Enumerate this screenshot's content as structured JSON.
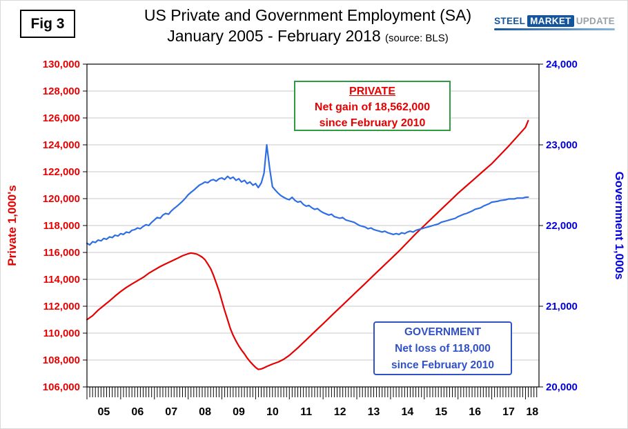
{
  "fig_label": "Fig 3",
  "title_line1": "US Private and Government Employment (SA)",
  "title_line2": "January 2005 - February 2018",
  "title_source": "(source: BLS)",
  "logo": {
    "steel": "STEEL",
    "market": "MARKET",
    "update": "UPDATE"
  },
  "annotations": {
    "private": {
      "title": "PRIVATE",
      "line1": "Net gain of 18,562,000",
      "line2": "since February 2010"
    },
    "government": {
      "title": "GOVERNMENT",
      "line1": "Net loss of 118,000",
      "line2": "since February 2010"
    }
  },
  "chart_data": {
    "type": "line",
    "grid": true,
    "x_range": [
      2005.0,
      2018.4
    ],
    "x_tick_labels": [
      "05",
      "06",
      "07",
      "08",
      "09",
      "10",
      "11",
      "12",
      "13",
      "14",
      "15",
      "16",
      "17",
      "18"
    ],
    "left_axis": {
      "label": "Private 1,000's",
      "color": "#e60000",
      "min": 106000,
      "max": 130000,
      "step": 2000,
      "tick_labels": [
        "130,000",
        "128,000",
        "126,000",
        "124,000",
        "122,000",
        "120,000",
        "118,000",
        "116,000",
        "114,000",
        "112,000",
        "110,000",
        "108,000",
        "106,000"
      ]
    },
    "right_axis": {
      "label": "Government 1,000s",
      "color": "#0000dd",
      "min": 20000,
      "max": 24000,
      "step": 1000,
      "tick_labels": [
        "24,000",
        "23,000",
        "22,000",
        "21,000",
        "20,000"
      ]
    },
    "series": [
      {
        "name": "Private",
        "axis": "left",
        "color": "#e60000",
        "points": [
          [
            2005.0,
            111000
          ],
          [
            2005.17,
            111300
          ],
          [
            2005.33,
            111700
          ],
          [
            2005.5,
            112050
          ],
          [
            2005.67,
            112400
          ],
          [
            2005.83,
            112750
          ],
          [
            2006.0,
            113100
          ],
          [
            2006.17,
            113400
          ],
          [
            2006.33,
            113650
          ],
          [
            2006.5,
            113900
          ],
          [
            2006.67,
            114150
          ],
          [
            2006.83,
            114450
          ],
          [
            2007.0,
            114700
          ],
          [
            2007.17,
            114950
          ],
          [
            2007.33,
            115150
          ],
          [
            2007.5,
            115350
          ],
          [
            2007.67,
            115550
          ],
          [
            2007.83,
            115750
          ],
          [
            2008.0,
            115900
          ],
          [
            2008.08,
            115960
          ],
          [
            2008.17,
            115920
          ],
          [
            2008.25,
            115880
          ],
          [
            2008.33,
            115780
          ],
          [
            2008.42,
            115640
          ],
          [
            2008.5,
            115450
          ],
          [
            2008.58,
            115150
          ],
          [
            2008.67,
            114780
          ],
          [
            2008.75,
            114300
          ],
          [
            2008.83,
            113750
          ],
          [
            2008.92,
            113100
          ],
          [
            2009.0,
            112400
          ],
          [
            2009.08,
            111700
          ],
          [
            2009.17,
            111000
          ],
          [
            2009.25,
            110350
          ],
          [
            2009.33,
            109850
          ],
          [
            2009.42,
            109400
          ],
          [
            2009.5,
            109050
          ],
          [
            2009.58,
            108750
          ],
          [
            2009.67,
            108450
          ],
          [
            2009.75,
            108150
          ],
          [
            2009.83,
            107900
          ],
          [
            2009.92,
            107650
          ],
          [
            2010.0,
            107450
          ],
          [
            2010.08,
            107300
          ],
          [
            2010.17,
            107340
          ],
          [
            2010.25,
            107420
          ],
          [
            2010.33,
            107520
          ],
          [
            2010.5,
            107700
          ],
          [
            2010.67,
            107850
          ],
          [
            2010.83,
            108050
          ],
          [
            2011.0,
            108350
          ],
          [
            2011.25,
            108900
          ],
          [
            2011.5,
            109500
          ],
          [
            2011.75,
            110100
          ],
          [
            2012.0,
            110700
          ],
          [
            2012.25,
            111300
          ],
          [
            2012.5,
            111900
          ],
          [
            2012.75,
            112500
          ],
          [
            2013.0,
            113100
          ],
          [
            2013.25,
            113700
          ],
          [
            2013.5,
            114300
          ],
          [
            2013.75,
            114900
          ],
          [
            2014.0,
            115500
          ],
          [
            2014.25,
            116100
          ],
          [
            2014.5,
            116750
          ],
          [
            2014.75,
            117400
          ],
          [
            2015.0,
            118000
          ],
          [
            2015.25,
            118600
          ],
          [
            2015.5,
            119200
          ],
          [
            2015.75,
            119800
          ],
          [
            2016.0,
            120400
          ],
          [
            2016.25,
            120950
          ],
          [
            2016.5,
            121500
          ],
          [
            2016.75,
            122050
          ],
          [
            2017.0,
            122600
          ],
          [
            2017.25,
            123250
          ],
          [
            2017.5,
            123900
          ],
          [
            2017.75,
            124600
          ],
          [
            2018.0,
            125300
          ],
          [
            2018.08,
            125800
          ]
        ]
      },
      {
        "name": "Government",
        "axis": "right",
        "color": "#2e6de4",
        "points": [
          [
            2005.0,
            21780
          ],
          [
            2005.08,
            21760
          ],
          [
            2005.17,
            21800
          ],
          [
            2005.25,
            21790
          ],
          [
            2005.33,
            21820
          ],
          [
            2005.42,
            21810
          ],
          [
            2005.5,
            21840
          ],
          [
            2005.58,
            21830
          ],
          [
            2005.67,
            21860
          ],
          [
            2005.75,
            21850
          ],
          [
            2005.83,
            21880
          ],
          [
            2005.92,
            21870
          ],
          [
            2006.0,
            21900
          ],
          [
            2006.08,
            21890
          ],
          [
            2006.17,
            21920
          ],
          [
            2006.25,
            21910
          ],
          [
            2006.33,
            21940
          ],
          [
            2006.42,
            21950
          ],
          [
            2006.5,
            21970
          ],
          [
            2006.58,
            21960
          ],
          [
            2006.67,
            21990
          ],
          [
            2006.75,
            22010
          ],
          [
            2006.83,
            22000
          ],
          [
            2006.92,
            22040
          ],
          [
            2007.0,
            22070
          ],
          [
            2007.08,
            22100
          ],
          [
            2007.17,
            22090
          ],
          [
            2007.25,
            22130
          ],
          [
            2007.33,
            22150
          ],
          [
            2007.42,
            22140
          ],
          [
            2007.5,
            22180
          ],
          [
            2007.58,
            22210
          ],
          [
            2007.67,
            22240
          ],
          [
            2007.75,
            22270
          ],
          [
            2007.83,
            22300
          ],
          [
            2007.92,
            22340
          ],
          [
            2008.0,
            22380
          ],
          [
            2008.08,
            22410
          ],
          [
            2008.17,
            22440
          ],
          [
            2008.25,
            22470
          ],
          [
            2008.33,
            22500
          ],
          [
            2008.42,
            22520
          ],
          [
            2008.5,
            22540
          ],
          [
            2008.58,
            22530
          ],
          [
            2008.67,
            22560
          ],
          [
            2008.75,
            22570
          ],
          [
            2008.83,
            22550
          ],
          [
            2008.92,
            22580
          ],
          [
            2009.0,
            22590
          ],
          [
            2009.08,
            22570
          ],
          [
            2009.17,
            22610
          ],
          [
            2009.25,
            22580
          ],
          [
            2009.33,
            22600
          ],
          [
            2009.42,
            22560
          ],
          [
            2009.5,
            22580
          ],
          [
            2009.58,
            22540
          ],
          [
            2009.67,
            22560
          ],
          [
            2009.75,
            22520
          ],
          [
            2009.83,
            22540
          ],
          [
            2009.92,
            22500
          ],
          [
            2010.0,
            22520
          ],
          [
            2010.08,
            22470
          ],
          [
            2010.17,
            22530
          ],
          [
            2010.25,
            22650
          ],
          [
            2010.33,
            23000
          ],
          [
            2010.42,
            22700
          ],
          [
            2010.5,
            22480
          ],
          [
            2010.58,
            22440
          ],
          [
            2010.67,
            22400
          ],
          [
            2010.75,
            22370
          ],
          [
            2010.83,
            22350
          ],
          [
            2010.92,
            22330
          ],
          [
            2011.0,
            22320
          ],
          [
            2011.08,
            22350
          ],
          [
            2011.17,
            22310
          ],
          [
            2011.25,
            22290
          ],
          [
            2011.33,
            22300
          ],
          [
            2011.42,
            22260
          ],
          [
            2011.5,
            22240
          ],
          [
            2011.58,
            22250
          ],
          [
            2011.67,
            22220
          ],
          [
            2011.75,
            22200
          ],
          [
            2011.83,
            22210
          ],
          [
            2011.92,
            22180
          ],
          [
            2012.0,
            22160
          ],
          [
            2012.17,
            22130
          ],
          [
            2012.25,
            22140
          ],
          [
            2012.33,
            22110
          ],
          [
            2012.5,
            22090
          ],
          [
            2012.58,
            22100
          ],
          [
            2012.67,
            22070
          ],
          [
            2012.75,
            22060
          ],
          [
            2012.92,
            22040
          ],
          [
            2013.0,
            22020
          ],
          [
            2013.08,
            22000
          ],
          [
            2013.17,
            21990
          ],
          [
            2013.25,
            21980
          ],
          [
            2013.33,
            21960
          ],
          [
            2013.42,
            21970
          ],
          [
            2013.5,
            21950
          ],
          [
            2013.58,
            21940
          ],
          [
            2013.67,
            21930
          ],
          [
            2013.75,
            21920
          ],
          [
            2013.83,
            21930
          ],
          [
            2013.92,
            21910
          ],
          [
            2014.0,
            21900
          ],
          [
            2014.08,
            21890
          ],
          [
            2014.17,
            21900
          ],
          [
            2014.25,
            21890
          ],
          [
            2014.33,
            21910
          ],
          [
            2014.42,
            21900
          ],
          [
            2014.5,
            21920
          ],
          [
            2014.58,
            21930
          ],
          [
            2014.67,
            21920
          ],
          [
            2014.75,
            21940
          ],
          [
            2014.83,
            21950
          ],
          [
            2014.92,
            21960
          ],
          [
            2015.0,
            21970
          ],
          [
            2015.17,
            21990
          ],
          [
            2015.25,
            22000
          ],
          [
            2015.42,
            22020
          ],
          [
            2015.5,
            22040
          ],
          [
            2015.67,
            22060
          ],
          [
            2015.75,
            22070
          ],
          [
            2015.92,
            22090
          ],
          [
            2016.0,
            22110
          ],
          [
            2016.17,
            22140
          ],
          [
            2016.25,
            22150
          ],
          [
            2016.42,
            22180
          ],
          [
            2016.5,
            22200
          ],
          [
            2016.67,
            22220
          ],
          [
            2016.75,
            22240
          ],
          [
            2016.92,
            22270
          ],
          [
            2017.0,
            22290
          ],
          [
            2017.17,
            22300
          ],
          [
            2017.25,
            22310
          ],
          [
            2017.42,
            22320
          ],
          [
            2017.5,
            22330
          ],
          [
            2017.67,
            22330
          ],
          [
            2017.75,
            22340
          ],
          [
            2017.92,
            22340
          ],
          [
            2018.0,
            22350
          ],
          [
            2018.08,
            22352
          ]
        ]
      }
    ]
  }
}
